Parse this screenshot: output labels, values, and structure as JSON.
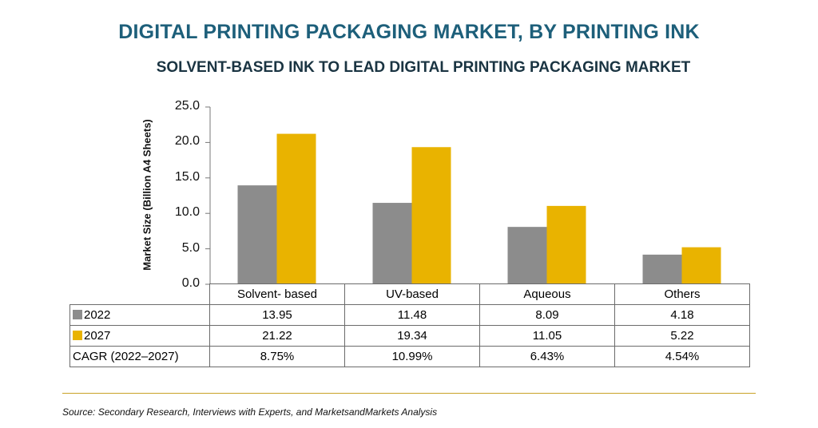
{
  "chart_data": {
    "type": "bar",
    "title": "DIGITAL PRINTING PACKAGING MARKET, BY PRINTING INK",
    "subtitle": "SOLVENT-BASED INK TO LEAD DIGITAL PRINTING PACKAGING MARKET",
    "ylabel": "Market Size (Billion A4 Sheets)",
    "ylim": [
      0,
      25
    ],
    "yticks": [
      "0.0",
      "5.0",
      "10.0",
      "15.0",
      "20.0",
      "25.0"
    ],
    "grid": false,
    "categories": [
      "Solvent- based",
      "UV-based",
      "Aqueous",
      "Others"
    ],
    "series": [
      {
        "name": "2022",
        "color": "#8c8c8c",
        "values": [
          13.95,
          11.48,
          8.09,
          4.18
        ],
        "labels": [
          "13.95",
          "11.48",
          "8.09",
          "4.18"
        ]
      },
      {
        "name": "2027",
        "color": "#e9b300",
        "values": [
          21.22,
          19.34,
          11.05,
          5.22
        ],
        "labels": [
          "21.22",
          "19.34",
          "11.05",
          "5.22"
        ]
      }
    ],
    "cagr": {
      "label": "CAGR (2022–2027)",
      "values": [
        "8.75%",
        "10.99%",
        "6.43%",
        "4.54%"
      ]
    }
  },
  "source": "Source: Secondary Research, Interviews with Experts, and MarketsandMarkets Analysis"
}
